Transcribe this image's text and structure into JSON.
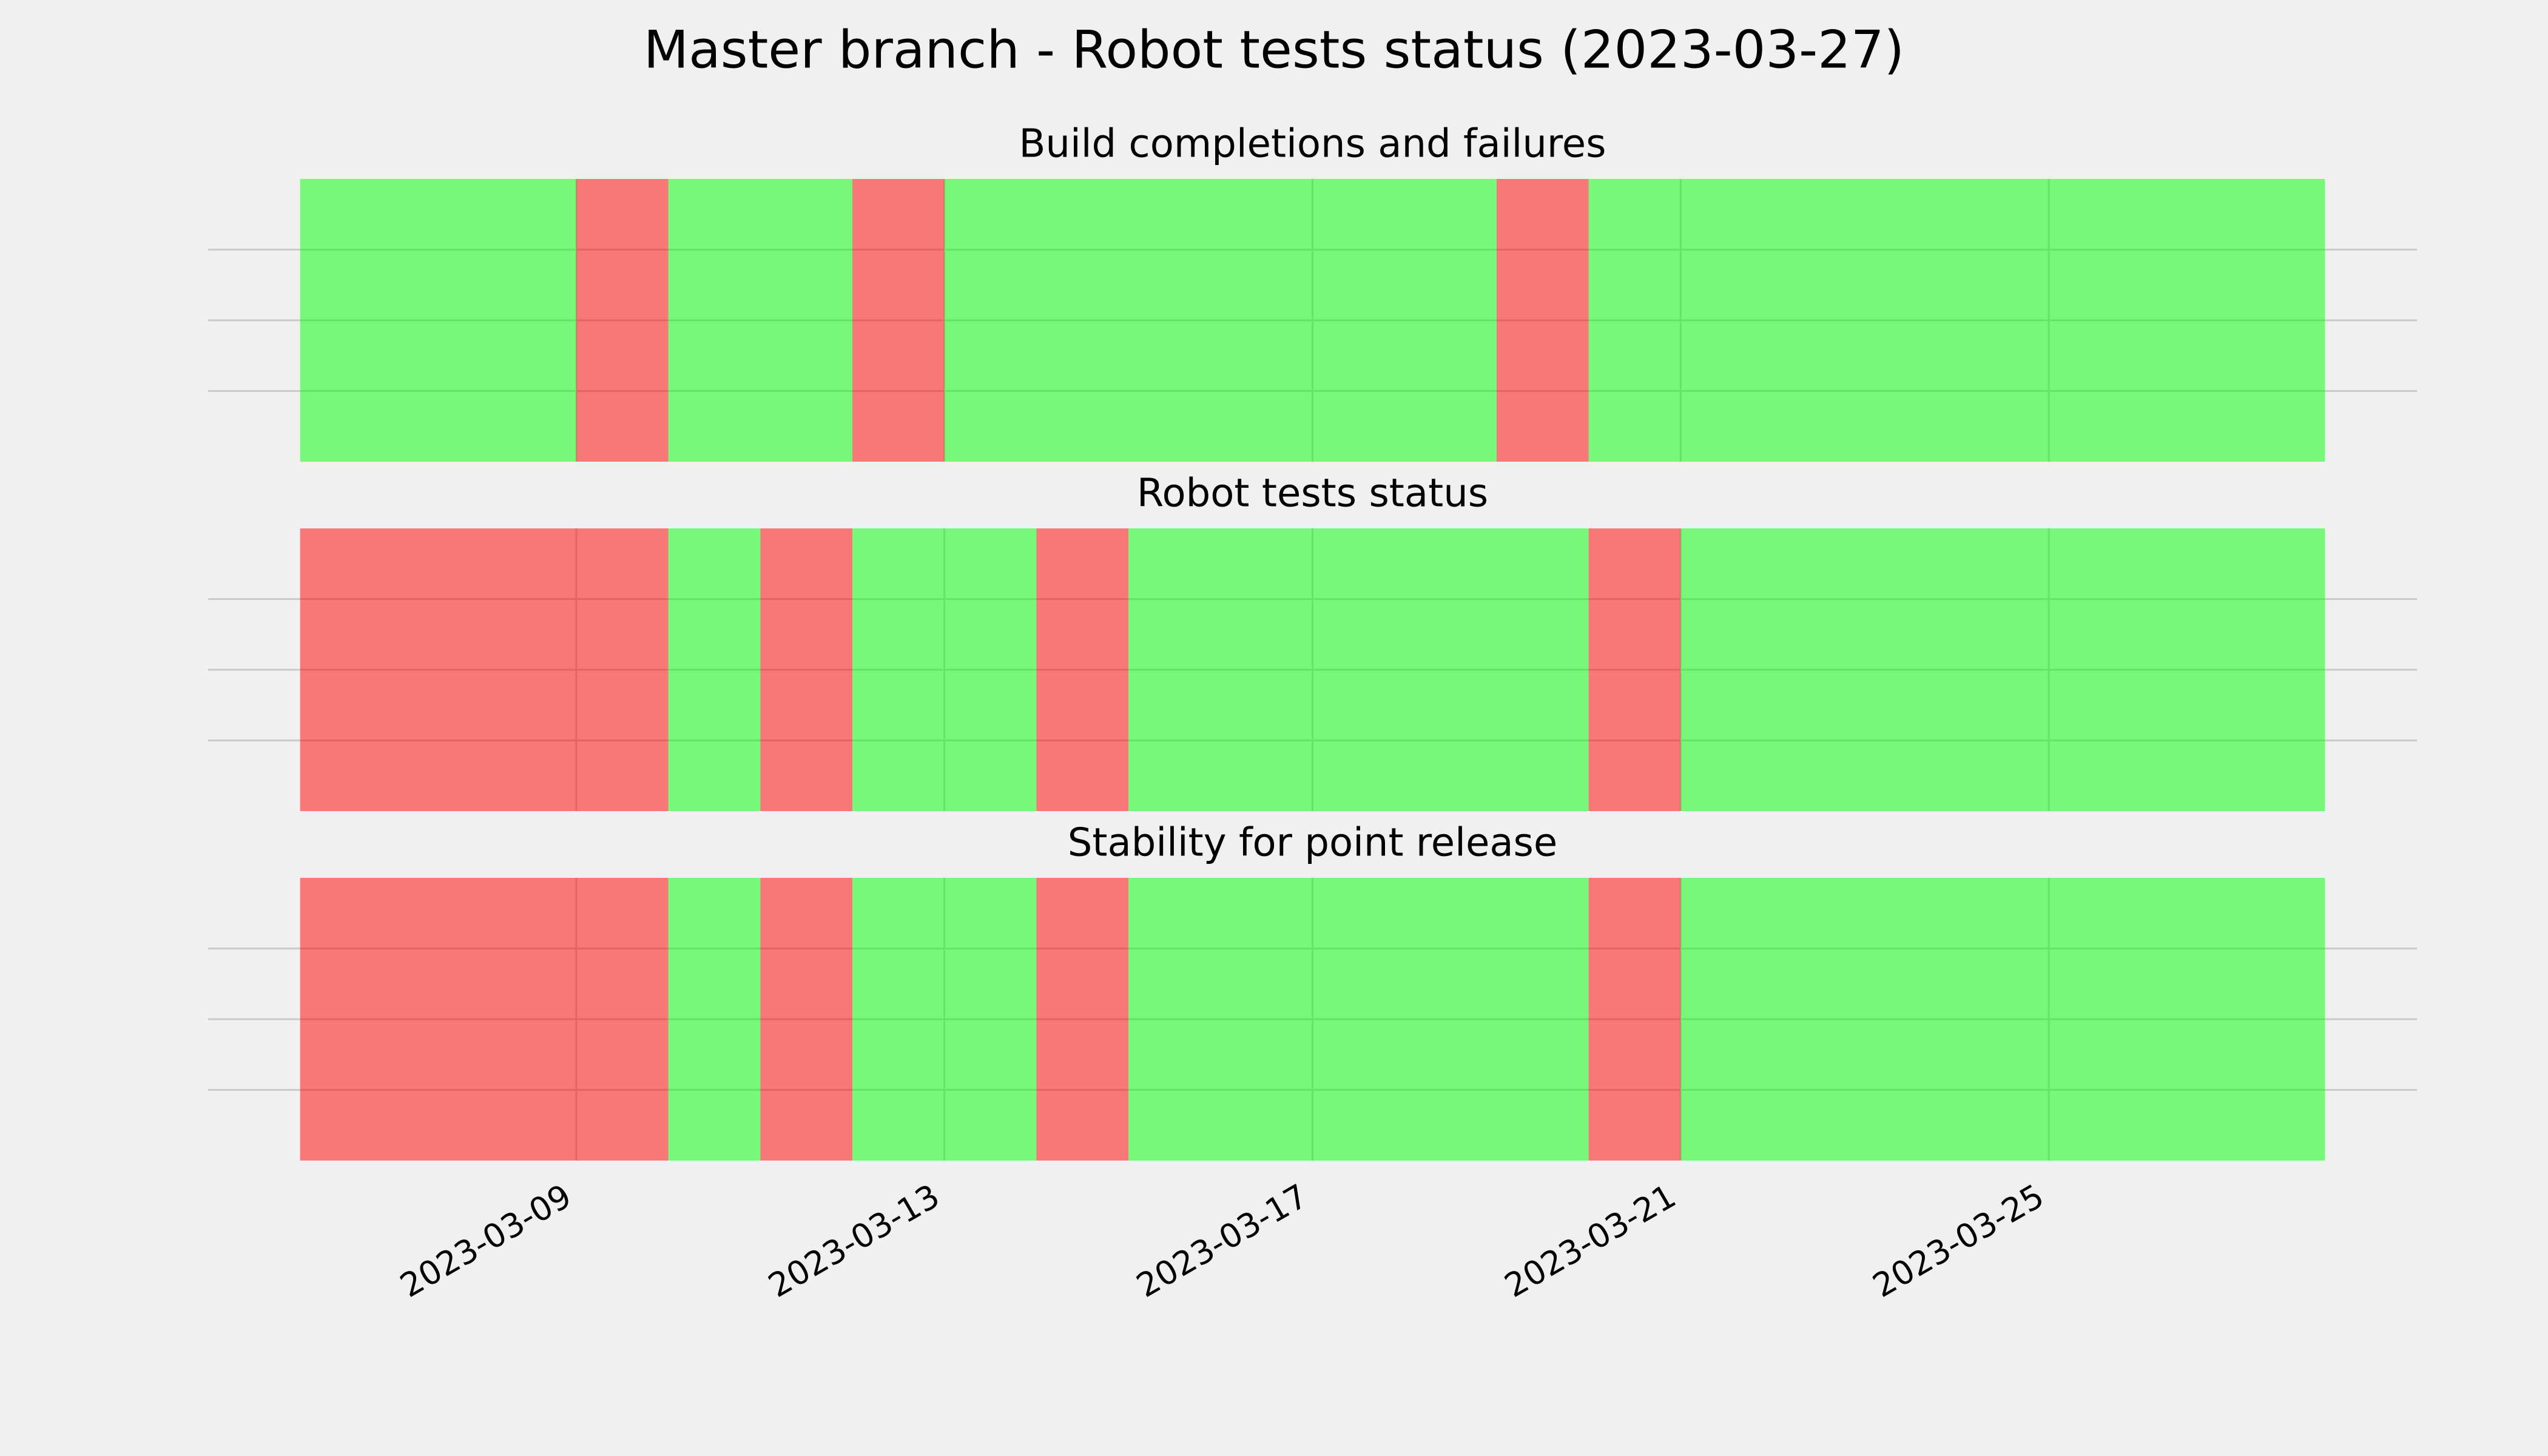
{
  "title": "Master branch - Robot tests status (2023-03-27)",
  "chart_data": [
    {
      "type": "timeline",
      "title": "Build completions and failures",
      "segments": [
        {
          "start": "2023-03-06",
          "end": "2023-03-09",
          "color": "#00ff00"
        },
        {
          "start": "2023-03-09",
          "end": "2023-03-10",
          "color": "#ff0000"
        },
        {
          "start": "2023-03-10",
          "end": "2023-03-12",
          "color": "#00ff00"
        },
        {
          "start": "2023-03-12",
          "end": "2023-03-13",
          "color": "#ff0000"
        },
        {
          "start": "2023-03-13",
          "end": "2023-03-19",
          "color": "#00ff00"
        },
        {
          "start": "2023-03-19",
          "end": "2023-03-20",
          "color": "#ff0000"
        },
        {
          "start": "2023-03-20",
          "end": "2023-03-28",
          "color": "#00ff00"
        }
      ],
      "xlim": [
        "2023-03-05",
        "2023-03-29"
      ],
      "xticks": [
        "2023-03-09",
        "2023-03-13",
        "2023-03-17",
        "2023-03-21",
        "2023-03-25"
      ],
      "ylim": [
        0,
        1
      ],
      "yticks": [
        0.25,
        0.5,
        0.75
      ],
      "grid": true
    },
    {
      "type": "timeline",
      "title": "Robot tests status",
      "segments": [
        {
          "start": "2023-03-06",
          "end": "2023-03-10",
          "color": "#ff0000"
        },
        {
          "start": "2023-03-10",
          "end": "2023-03-11",
          "color": "#00ff00"
        },
        {
          "start": "2023-03-11",
          "end": "2023-03-12",
          "color": "#ff0000"
        },
        {
          "start": "2023-03-12",
          "end": "2023-03-14",
          "color": "#00ff00"
        },
        {
          "start": "2023-03-14",
          "end": "2023-03-15",
          "color": "#ff0000"
        },
        {
          "start": "2023-03-15",
          "end": "2023-03-20",
          "color": "#00ff00"
        },
        {
          "start": "2023-03-20",
          "end": "2023-03-21",
          "color": "#ff0000"
        },
        {
          "start": "2023-03-21",
          "end": "2023-03-28",
          "color": "#00ff00"
        }
      ],
      "xlim": [
        "2023-03-05",
        "2023-03-29"
      ],
      "xticks": [
        "2023-03-09",
        "2023-03-13",
        "2023-03-17",
        "2023-03-21",
        "2023-03-25"
      ],
      "ylim": [
        0,
        1
      ],
      "yticks": [
        0.25,
        0.5,
        0.75
      ],
      "grid": true
    },
    {
      "type": "timeline",
      "title": "Stability for point release",
      "segments": [
        {
          "start": "2023-03-06",
          "end": "2023-03-10",
          "color": "#ff0000"
        },
        {
          "start": "2023-03-10",
          "end": "2023-03-11",
          "color": "#00ff00"
        },
        {
          "start": "2023-03-11",
          "end": "2023-03-12",
          "color": "#ff0000"
        },
        {
          "start": "2023-03-12",
          "end": "2023-03-14",
          "color": "#00ff00"
        },
        {
          "start": "2023-03-14",
          "end": "2023-03-15",
          "color": "#ff0000"
        },
        {
          "start": "2023-03-15",
          "end": "2023-03-20",
          "color": "#00ff00"
        },
        {
          "start": "2023-03-20",
          "end": "2023-03-21",
          "color": "#ff0000"
        },
        {
          "start": "2023-03-21",
          "end": "2023-03-28",
          "color": "#00ff00"
        }
      ],
      "xlim": [
        "2023-03-05",
        "2023-03-29"
      ],
      "xticks": [
        "2023-03-09",
        "2023-03-13",
        "2023-03-17",
        "2023-03-21",
        "2023-03-25"
      ],
      "ylim": [
        0,
        1
      ],
      "yticks": [
        0.25,
        0.5,
        0.75
      ],
      "grid": true
    }
  ]
}
